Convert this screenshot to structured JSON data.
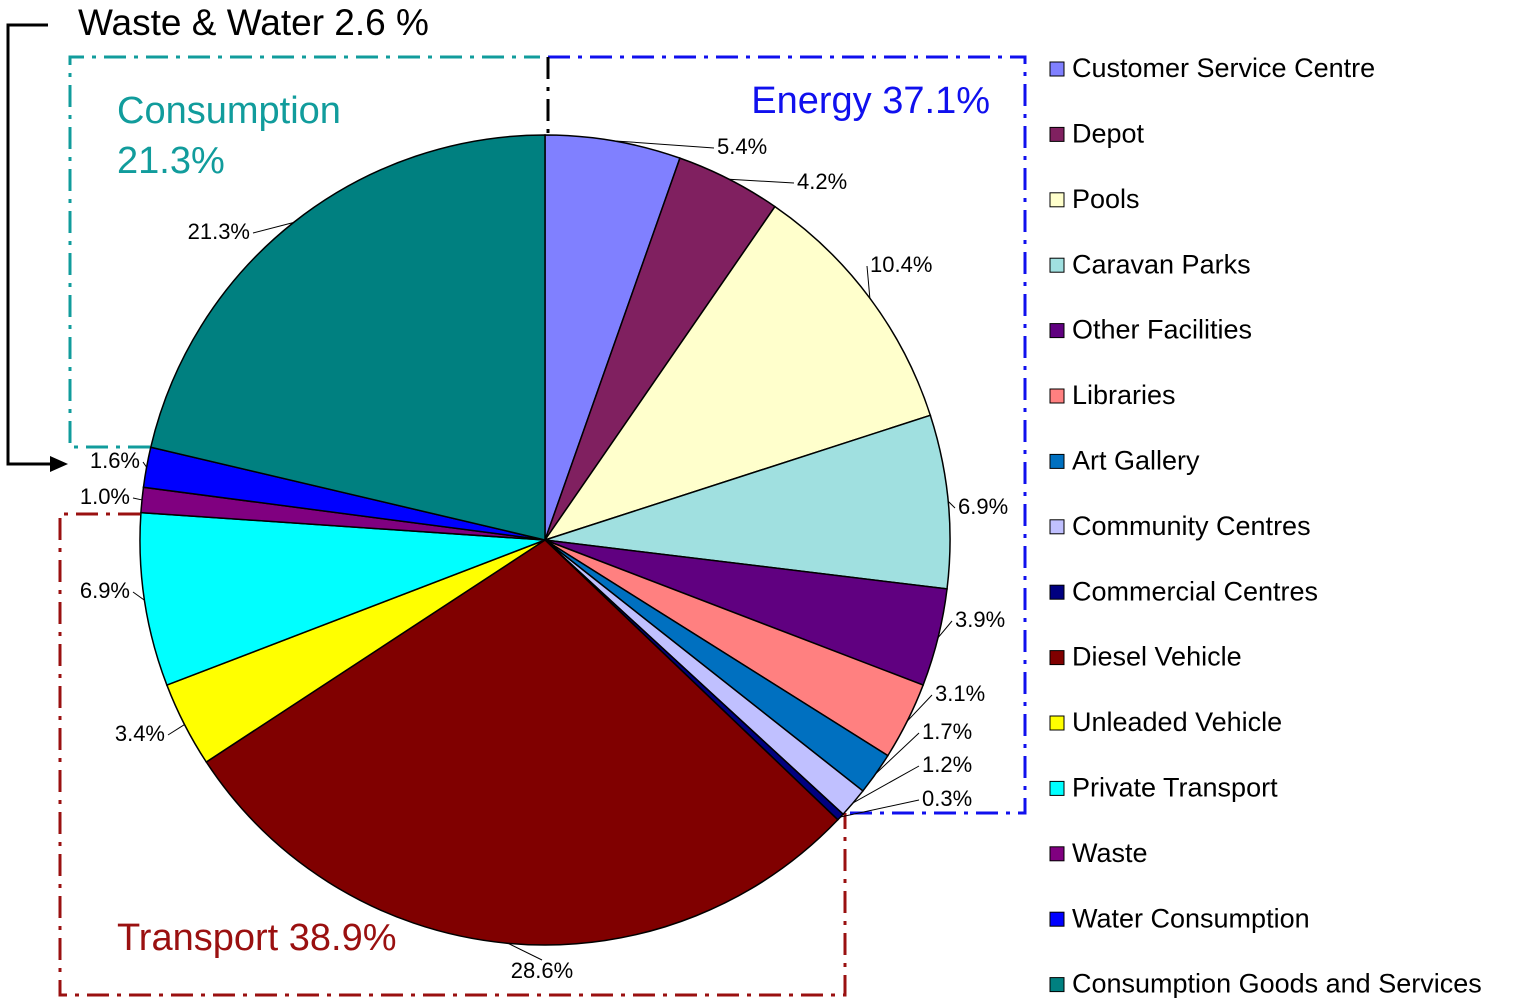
{
  "chart_data": {
    "type": "pie",
    "categories": [
      "Customer Service Centre",
      "Depot",
      "Pools",
      "Caravan Parks",
      "Other Facilities",
      "Libraries",
      "Art Gallery",
      "Community Centres",
      "Commercial Centres",
      "Diesel Vehicle",
      "Unleaded Vehicle",
      "Private Transport",
      "Waste",
      "Water Consumption",
      "Consumption Goods and Services"
    ],
    "values": [
      5.4,
      4.2,
      10.4,
      6.9,
      3.9,
      3.1,
      1.7,
      1.2,
      0.3,
      28.6,
      3.4,
      6.9,
      1.0,
      1.6,
      21.3
    ],
    "value_labels": [
      "5.4%",
      "4.2%",
      "10.4%",
      "6.9%",
      "3.9%",
      "3.1%",
      "1.7%",
      "1.2%",
      "0.3%",
      "28.6%",
      "3.4%",
      "6.9%",
      "1.0%",
      "1.6%",
      "21.3%"
    ],
    "colors": [
      "#8080ff",
      "#802060",
      "#ffffcc",
      "#a0e0e0",
      "#600080",
      "#ff8080",
      "#0070c0",
      "#c0c0ff",
      "#000080",
      "#800000",
      "#ffff00",
      "#00ffff",
      "#800080",
      "#0000ff",
      "#008080"
    ],
    "legend": "right",
    "annotations": {
      "waste_water": "Waste & Water 2.6 %",
      "consumption": [
        "Consumption",
        "21.3%"
      ],
      "energy": "Energy 37.1%",
      "transport": "Transport 38.9%"
    }
  }
}
